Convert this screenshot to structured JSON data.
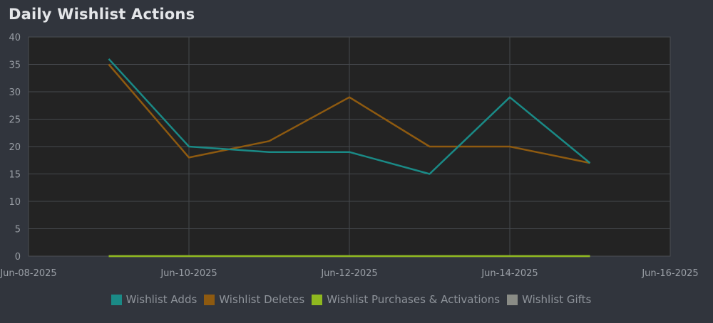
{
  "page": {
    "title": "Daily Wishlist Actions"
  },
  "chart_data": {
    "type": "line",
    "title": "Daily Wishlist Actions",
    "xlabel": "",
    "ylabel": "",
    "x_axis_type": "date",
    "xlim": [
      "2025-06-08",
      "2025-06-16"
    ],
    "ylim": [
      0,
      40
    ],
    "y_ticks": [
      0,
      5,
      10,
      15,
      20,
      25,
      30,
      35,
      40
    ],
    "x_ticks": [
      "2025-06-08",
      "2025-06-10",
      "2025-06-12",
      "2025-06-14",
      "2025-06-16"
    ],
    "x_tick_labels": [
      "Jun-08-2025",
      "Jun-10-2025",
      "Jun-12-2025",
      "Jun-14-2025",
      "Jun-16-2025"
    ],
    "grid": true,
    "legend_position": "bottom-center",
    "x": [
      "2025-06-09",
      "2025-06-10",
      "2025-06-11",
      "2025-06-12",
      "2025-06-13",
      "2025-06-14",
      "2025-06-15"
    ],
    "series": [
      {
        "name": "Wishlist Adds",
        "color": "#1a8a86",
        "values": [
          36,
          20,
          19,
          19,
          15,
          29,
          17
        ]
      },
      {
        "name": "Wishlist Deletes",
        "color": "#8e5a10",
        "values": [
          35,
          18,
          21,
          29,
          20,
          20,
          17
        ]
      },
      {
        "name": "Wishlist Purchases & Activations",
        "color": "#8fb81f",
        "values": [
          0,
          0,
          0,
          0,
          0,
          0,
          0
        ]
      },
      {
        "name": "Wishlist Gifts",
        "color": "#8a8c86",
        "values": [
          0,
          0,
          0,
          0,
          0,
          0,
          0
        ]
      }
    ]
  }
}
